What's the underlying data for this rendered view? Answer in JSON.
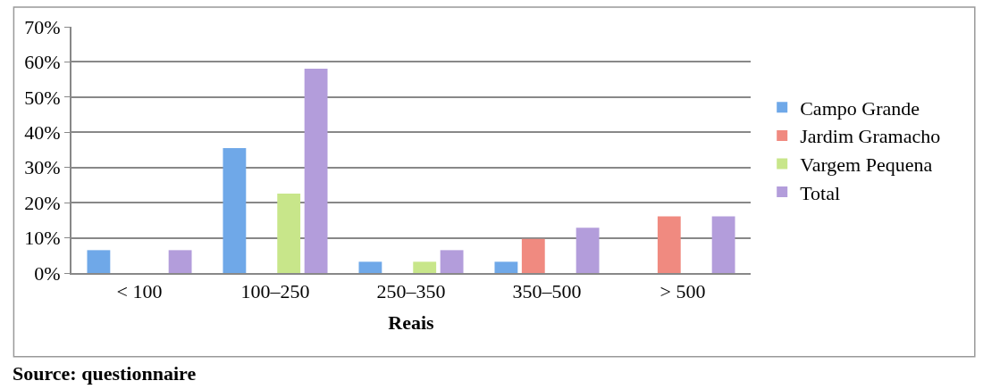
{
  "chart_data": {
    "type": "bar",
    "xlabel": "Reais",
    "categories": [
      "< 100",
      "100–250",
      "250–350",
      "350–500",
      "> 500"
    ],
    "series": [
      {
        "name": "Campo Grande",
        "color": "#6fa8e8",
        "values": [
          6.5,
          35.5,
          3.2,
          3.2,
          null
        ]
      },
      {
        "name": "Jardim Gramacho",
        "color": "#f08a80",
        "values": [
          null,
          null,
          null,
          9.7,
          16.1
        ]
      },
      {
        "name": "Vargem Pequena",
        "color": "#c8e68a",
        "values": [
          null,
          22.6,
          3.2,
          null,
          null
        ]
      },
      {
        "name": "Total",
        "color": "#b39ddb",
        "values": [
          6.5,
          58.1,
          6.5,
          12.9,
          16.1
        ]
      }
    ],
    "ylim": [
      0,
      70
    ],
    "yticks": [
      {
        "value": 0,
        "label": "0%"
      },
      {
        "value": 10,
        "label": "10%"
      },
      {
        "value": 20,
        "label": "20%"
      },
      {
        "value": 30,
        "label": "30%"
      },
      {
        "value": 40,
        "label": "40%"
      },
      {
        "value": 50,
        "label": "50%"
      },
      {
        "value": 60,
        "label": "60%"
      },
      {
        "value": 70,
        "label": "70%"
      }
    ],
    "grid": "y",
    "legend": "right",
    "annotations": [
      "Source: questionnaire"
    ]
  }
}
